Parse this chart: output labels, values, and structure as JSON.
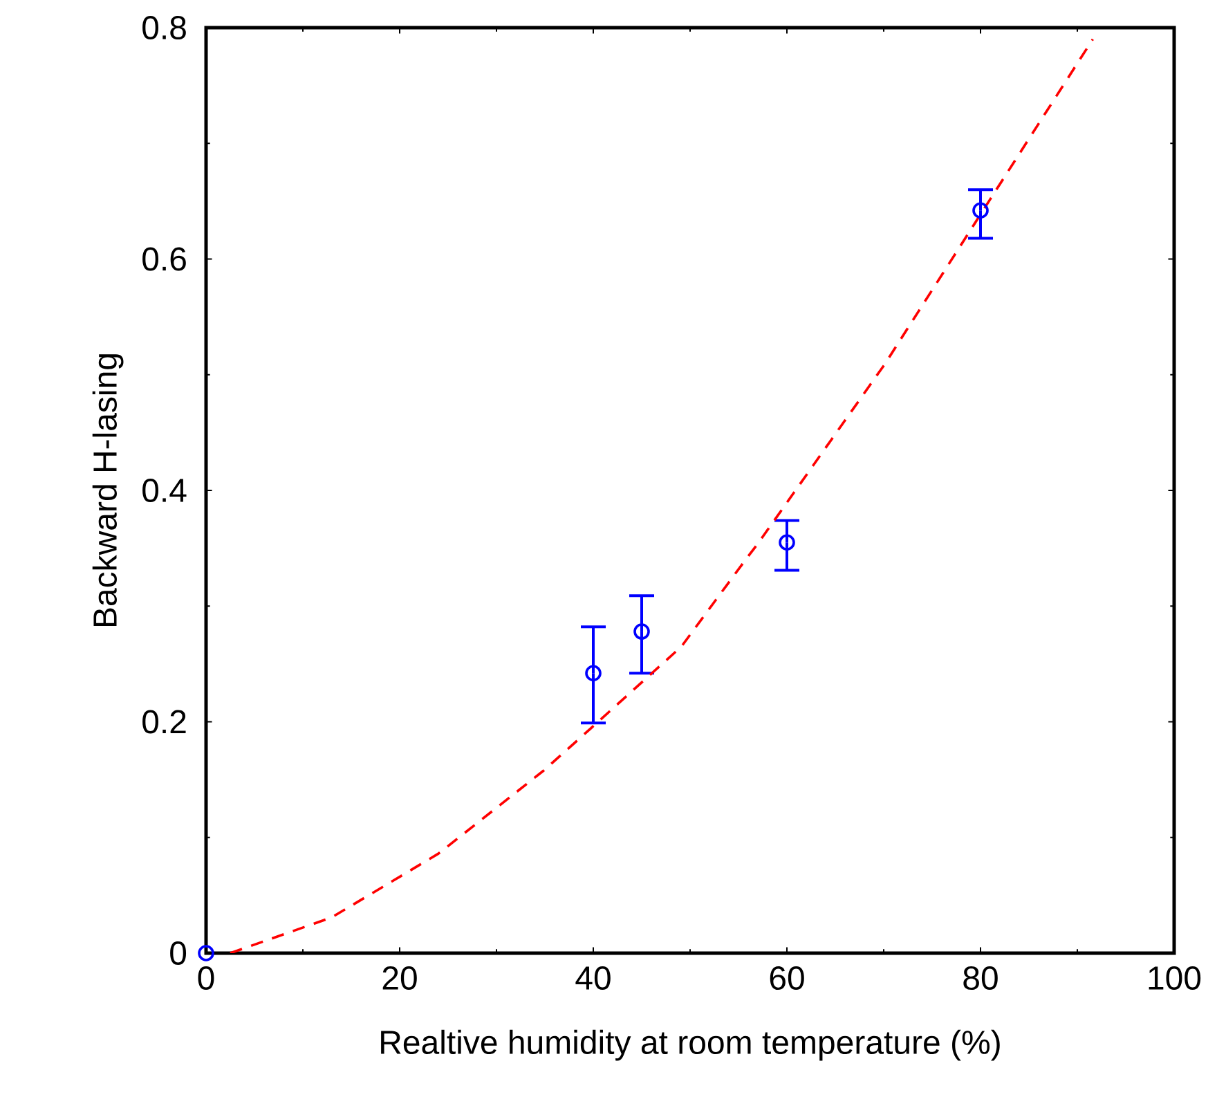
{
  "chart_data": {
    "type": "scatter",
    "xlabel": "Realtive humidity at room temperature (%)",
    "ylabel": "Backward H-lasing",
    "xlim": [
      0,
      100
    ],
    "ylim": [
      0,
      0.8
    ],
    "xticks": [
      0,
      20,
      40,
      60,
      80,
      100
    ],
    "yticks": [
      0,
      0.2,
      0.4,
      0.6,
      0.8
    ],
    "grid": false,
    "series": [
      {
        "color": "#0000ff",
        "marker": "circle",
        "x": [
          0,
          40,
          45,
          60,
          80
        ],
        "values": [
          0,
          0.242,
          0.278,
          0.355,
          0.642
        ],
        "errors": [
          null,
          [
            0.199,
            0.282
          ],
          [
            0.242,
            0.309
          ],
          [
            0.331,
            0.374
          ],
          [
            0.618,
            0.66
          ]
        ]
      },
      {
        "type": "line",
        "color": "#ff0000",
        "line_style": "dashed",
        "marker": "none",
        "x": [
          2.5,
          13,
          24,
          34.9,
          39.7,
          49.1,
          55.9,
          57,
          70.1,
          81.1,
          91.6
        ],
        "values": [
          0,
          0.031,
          0.086,
          0.158,
          0.194,
          0.265,
          0.342,
          0.354,
          0.509,
          0.653,
          0.79
        ]
      }
    ]
  }
}
